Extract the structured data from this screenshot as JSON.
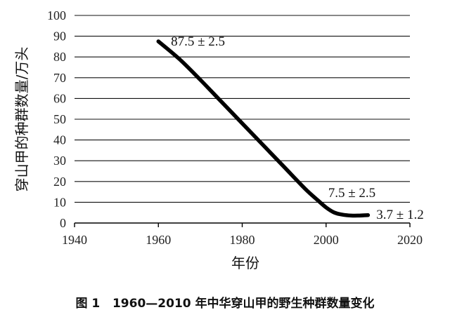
{
  "caption": "图 1   1960—2010 年中华穿山甲的野生种群数量变化",
  "chart_data": {
    "type": "line",
    "xlabel": "年份",
    "ylabel": "穿山甲的种群数量/万头",
    "xlim": [
      1940,
      2020
    ],
    "ylim": [
      0,
      100
    ],
    "x_ticks": [
      "1940",
      "1960",
      "1980",
      "2000",
      "2020"
    ],
    "y_ticks": [
      "0",
      "10",
      "20",
      "30",
      "40",
      "50",
      "60",
      "70",
      "80",
      "90",
      "100"
    ],
    "grid": "horizontal",
    "series": [
      {
        "x": [
          1960,
          1965,
          1970,
          1975,
          1980,
          1985,
          1990,
          1995,
          1998,
          2000,
          2002,
          2004,
          2006,
          2008,
          2010
        ],
        "y": [
          87.5,
          79.0,
          69.0,
          58.5,
          48.0,
          37.5,
          27.0,
          16.5,
          11.0,
          7.5,
          5.0,
          4.0,
          3.6,
          3.6,
          3.8
        ],
        "color": "#000000"
      }
    ],
    "annotations": [
      {
        "text": "87.5 ± 2.5",
        "x": 1963,
        "y": 85.5
      },
      {
        "text": "7.5 ± 2.5",
        "x": 2000.5,
        "y": 12.5
      },
      {
        "text": "3.7 ± 1.2",
        "x": 2012,
        "y": 2.0
      }
    ]
  }
}
